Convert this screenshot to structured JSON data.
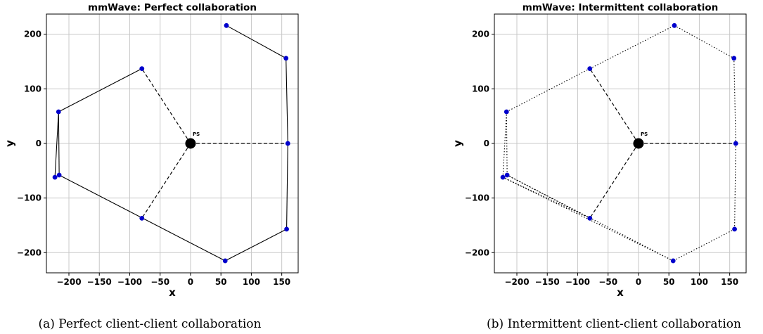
{
  "chart_data": [
    {
      "type": "scatter",
      "title": "mmWave: Perfect collaboration",
      "caption": "(a) Perfect client-client collaboration",
      "xlabel": "x",
      "ylabel": "y",
      "xlim": [
        -237,
        177
      ],
      "ylim": [
        -237,
        237
      ],
      "xticks": [
        -200,
        -150,
        -100,
        -50,
        0,
        50,
        100,
        150
      ],
      "yticks": [
        -200,
        -100,
        0,
        100,
        200
      ],
      "grid": true,
      "point_color": "#0000cc",
      "server": {
        "label": "PS",
        "x": 0,
        "y": 0,
        "color": "#000000"
      },
      "clients": [
        {
          "x": -80,
          "y": 137
        },
        {
          "x": -217,
          "y": 58
        },
        {
          "x": -223,
          "y": -62
        },
        {
          "x": -216,
          "y": -58
        },
        {
          "x": -80,
          "y": -137
        },
        {
          "x": 57,
          "y": -215
        },
        {
          "x": 158,
          "y": -157
        },
        {
          "x": 160,
          "y": 0
        },
        {
          "x": 157,
          "y": 156
        },
        {
          "x": 59,
          "y": 216
        }
      ],
      "server_links": [
        0,
        4,
        7
      ],
      "server_link_style": "dashed",
      "client_links": [
        [
          0,
          1
        ],
        [
          1,
          2
        ],
        [
          1,
          3
        ],
        [
          3,
          5
        ],
        [
          5,
          6
        ],
        [
          6,
          7
        ],
        [
          7,
          8
        ],
        [
          8,
          9
        ]
      ],
      "client_link_style": "solid"
    },
    {
      "type": "scatter",
      "title": "mmWave: Intermittent collaboration",
      "caption": "(b) Intermittent client-client collaboration",
      "xlabel": "x",
      "ylabel": "y",
      "xlim": [
        -237,
        177
      ],
      "ylim": [
        -237,
        237
      ],
      "xticks": [
        -200,
        -150,
        -100,
        -50,
        0,
        50,
        100,
        150
      ],
      "yticks": [
        -200,
        -100,
        0,
        100,
        200
      ],
      "grid": true,
      "point_color": "#0000cc",
      "server": {
        "label": "PS",
        "x": 0,
        "y": 0,
        "color": "#000000"
      },
      "clients": [
        {
          "x": -80,
          "y": 137
        },
        {
          "x": -217,
          "y": 58
        },
        {
          "x": -223,
          "y": -62
        },
        {
          "x": -216,
          "y": -58
        },
        {
          "x": -80,
          "y": -137
        },
        {
          "x": 57,
          "y": -215
        },
        {
          "x": 158,
          "y": -157
        },
        {
          "x": 160,
          "y": 0
        },
        {
          "x": 157,
          "y": 156
        },
        {
          "x": 59,
          "y": 216
        }
      ],
      "server_links": [
        0,
        4,
        7
      ],
      "server_link_style": "dashed",
      "client_links": [
        [
          0,
          1
        ],
        [
          0,
          9
        ],
        [
          9,
          8
        ],
        [
          8,
          7
        ],
        [
          7,
          6
        ],
        [
          6,
          5
        ],
        [
          5,
          3
        ],
        [
          5,
          2
        ],
        [
          4,
          2
        ],
        [
          4,
          3
        ],
        [
          1,
          2
        ],
        [
          1,
          3
        ]
      ],
      "client_link_style": "dotted"
    }
  ]
}
